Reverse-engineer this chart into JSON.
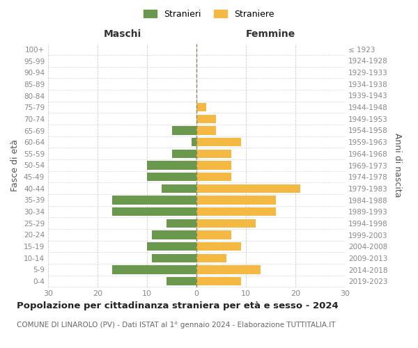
{
  "age_groups": [
    "100+",
    "95-99",
    "90-94",
    "85-89",
    "80-84",
    "75-79",
    "70-74",
    "65-69",
    "60-64",
    "55-59",
    "50-54",
    "45-49",
    "40-44",
    "35-39",
    "30-34",
    "25-29",
    "20-24",
    "15-19",
    "10-14",
    "5-9",
    "0-4"
  ],
  "birth_years": [
    "≤ 1923",
    "1924-1928",
    "1929-1933",
    "1934-1938",
    "1939-1943",
    "1944-1948",
    "1949-1953",
    "1954-1958",
    "1959-1963",
    "1964-1968",
    "1969-1973",
    "1974-1978",
    "1979-1983",
    "1984-1988",
    "1989-1993",
    "1994-1998",
    "1999-2003",
    "2004-2008",
    "2009-2013",
    "2014-2018",
    "2019-2023"
  ],
  "males": [
    0,
    0,
    0,
    0,
    0,
    0,
    0,
    5,
    1,
    5,
    10,
    10,
    7,
    17,
    17,
    6,
    9,
    10,
    9,
    17,
    6
  ],
  "females": [
    0,
    0,
    0,
    0,
    0,
    2,
    4,
    4,
    9,
    7,
    7,
    7,
    21,
    16,
    16,
    12,
    7,
    9,
    6,
    13,
    9
  ],
  "male_color": "#6a994e",
  "female_color": "#f4b942",
  "grid_color": "#cccccc",
  "bar_height": 0.75,
  "xlim": 30,
  "title": "Popolazione per cittadinanza straniera per età e sesso - 2024",
  "subtitle": "COMUNE DI LINAROLO (PV) - Dati ISTAT al 1° gennaio 2024 - Elaborazione TUTTITALIA.IT",
  "xlabel_left": "Maschi",
  "xlabel_right": "Femmine",
  "ylabel_left": "Fasce di età",
  "ylabel_right": "Anni di nascita",
  "legend_stranieri": "Stranieri",
  "legend_straniere": "Straniere",
  "bg_color": "#ffffff",
  "tick_color": "#888888",
  "center_line_color": "#888866",
  "title_fontsize": 9.5,
  "subtitle_fontsize": 7.5
}
